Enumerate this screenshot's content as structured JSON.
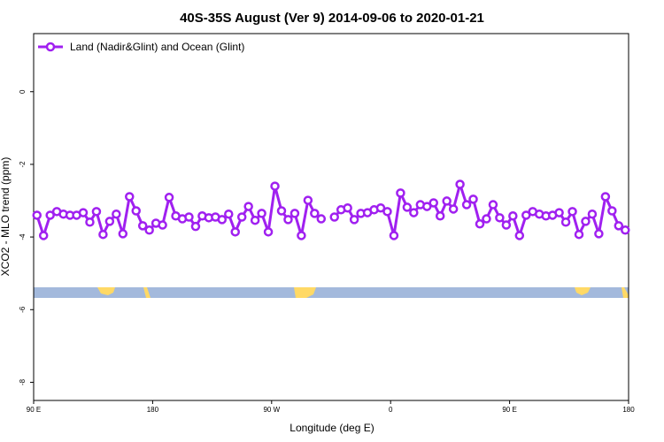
{
  "chart_data": {
    "type": "line",
    "title": "40S-35S August (Ver 9)   2014-09-06 to 2020-01-21",
    "x_label": "Longitude (deg E)",
    "y_label": "XCO2 - MLO trend (ppm)",
    "series": [
      {
        "name": "Land (Nadir&Glint) and Ocean (Glint)",
        "color": "#a020f0",
        "x": [
          92.5,
          97.5,
          102.5,
          107.5,
          112.5,
          117.5,
          122.5,
          127.5,
          132.5,
          137.5,
          142.5,
          147.5,
          152.5,
          157.5,
          162.5,
          167.5,
          172.5,
          177.5,
          182.5,
          187.5,
          192.5,
          197.5,
          202.5,
          207.5,
          212.5,
          217.5,
          222.5,
          227.5,
          232.5,
          237.5,
          242.5,
          247.5,
          252.5,
          257.5,
          262.5,
          267.5,
          272.5,
          277.5,
          282.5,
          287.5,
          292.5,
          297.5,
          302.5,
          307.5,
          312.5,
          317.5,
          322.5,
          327.5,
          332.5,
          337.5,
          342.5,
          347.5,
          352.5,
          357.5,
          362.5,
          367.5,
          372.5,
          377.5,
          382.5,
          387.5,
          392.5,
          397.5,
          402.5,
          407.5,
          412.5,
          417.5,
          422.5,
          427.5,
          432.5,
          437.5,
          442.5,
          447.5,
          452.5,
          457.5,
          462.5,
          467.5,
          472.5,
          477.5,
          482.5,
          487.5,
          492.5,
          497.5,
          502.5,
          507.5,
          512.5,
          517.5,
          522.5,
          527.5,
          532.5,
          537.5
        ],
        "values": [
          -3.4,
          -3.96,
          -3.4,
          -3.3,
          -3.37,
          -3.4,
          -3.4,
          -3.33,
          -3.59,
          -3.3,
          -3.93,
          -3.57,
          -3.37,
          -3.91,
          -2.89,
          -3.28,
          -3.69,
          -3.81,
          -3.62,
          -3.67,
          -2.91,
          -3.42,
          -3.5,
          -3.45,
          -3.71,
          -3.42,
          -3.47,
          -3.45,
          -3.52,
          -3.37,
          -3.86,
          -3.45,
          -3.16,
          -3.54,
          -3.35,
          -3.86,
          -2.6,
          -3.28,
          -3.52,
          -3.35,
          -3.96,
          -2.99,
          -3.35,
          -3.5,
          null,
          -3.45,
          -3.25,
          -3.2,
          -3.52,
          -3.35,
          -3.33,
          -3.25,
          -3.2,
          -3.3,
          -3.96,
          -2.79,
          -3.18,
          -3.33,
          -3.11,
          -3.16,
          -3.06,
          -3.42,
          -3.01,
          -3.23,
          -2.55,
          -3.11,
          -2.96,
          -3.64,
          -3.5,
          -3.11,
          -3.47,
          -3.67,
          -3.42,
          -3.96,
          -3.4,
          -3.3,
          -3.37,
          -3.42,
          -3.4,
          -3.33,
          -3.59,
          -3.3,
          -3.93,
          -3.57,
          -3.37,
          -3.91,
          -2.89,
          -3.28,
          -3.69,
          -3.81
        ]
      }
    ],
    "xlim": [
      90,
      540
    ],
    "xticks": [
      {
        "value": 90,
        "label": "90 E"
      },
      180,
      {
        "value": 270,
        "label": "90 W"
      },
      {
        "value": 360,
        "label": "0"
      },
      {
        "value": 450,
        "label": "90 E"
      },
      {
        "value": 540,
        "label": "180"
      }
    ],
    "ylim": [
      -8.5,
      1.6
    ],
    "yticks": [
      0,
      -2,
      -4,
      -6,
      -8
    ],
    "legend": "top-left"
  }
}
